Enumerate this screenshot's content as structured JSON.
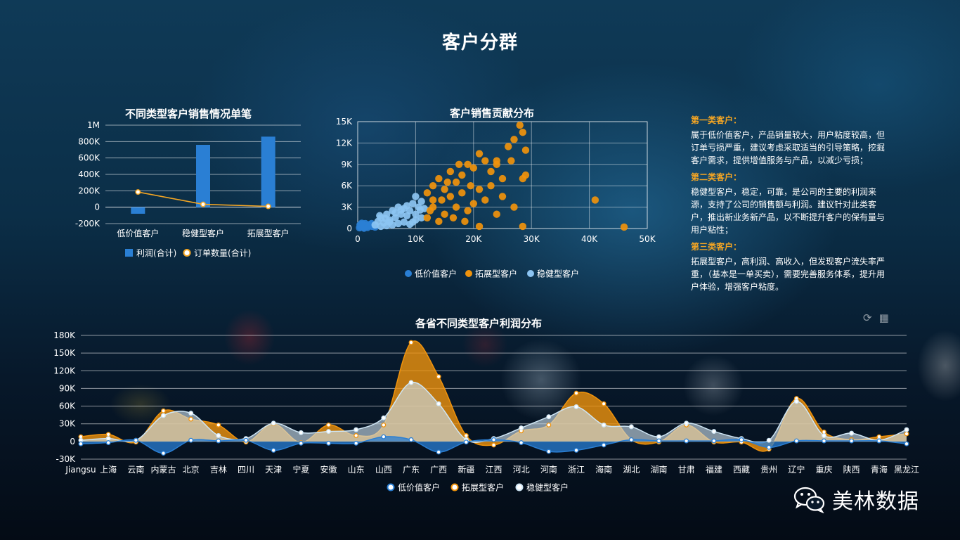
{
  "page": {
    "title": "客户分群"
  },
  "chart_data": [
    {
      "id": "bar",
      "type": "bar",
      "title": "不同类型客户销售情况单笔",
      "categories": [
        "低价值客户",
        "稳健型客户",
        "拓展型客户"
      ],
      "series": [
        {
          "name": "利润(合计)",
          "kind": "bar",
          "color": "#2a7fd4",
          "values": [
            -80000,
            760000,
            860000
          ]
        },
        {
          "name": "订单数量(合计)",
          "kind": "line",
          "color": "#f5a623",
          "values": [
            185000,
            35000,
            10000
          ]
        }
      ],
      "yticks": [
        "1M",
        "800K",
        "600K",
        "400K",
        "200K",
        "0",
        "-200K"
      ],
      "ylim": [
        -200000,
        1000000
      ]
    },
    {
      "id": "scatter",
      "type": "scatter",
      "title": "客户销售贡献分布",
      "xticks": [
        "0",
        "10K",
        "20K",
        "30K",
        "40K",
        "50K"
      ],
      "yticks": [
        "15K",
        "12K",
        "9K",
        "6K",
        "3K",
        "0"
      ],
      "xlim": [
        0,
        50000
      ],
      "ylim": [
        0,
        15000
      ],
      "series": [
        {
          "name": "低价值客户",
          "color": "#2a7fd4",
          "points": [
            [
              300,
              100
            ],
            [
              500,
              200
            ],
            [
              800,
              300
            ],
            [
              1000,
              150
            ],
            [
              1200,
              400
            ],
            [
              1500,
              250
            ],
            [
              1800,
              500
            ],
            [
              2000,
              350
            ],
            [
              600,
              600
            ],
            [
              900,
              450
            ],
            [
              1300,
              700
            ],
            [
              2200,
              600
            ],
            [
              2500,
              300
            ],
            [
              400,
              500
            ],
            [
              1700,
              150
            ],
            [
              2400,
              700
            ],
            [
              1100,
              50
            ],
            [
              2800,
              400
            ],
            [
              700,
              750
            ],
            [
              3000,
              200
            ]
          ]
        },
        {
          "name": "拓展型客户",
          "color": "#f0930c",
          "points": [
            [
              12000,
              5000
            ],
            [
              13000,
              6000
            ],
            [
              14000,
              7000
            ],
            [
              15000,
              5500
            ],
            [
              16000,
              8000
            ],
            [
              17000,
              6500
            ],
            [
              18000,
              7500
            ],
            [
              19000,
              9000
            ],
            [
              20000,
              8500
            ],
            [
              21000,
              10500
            ],
            [
              22000,
              9500
            ],
            [
              23000,
              8000
            ],
            [
              24000,
              9000
            ],
            [
              25000,
              7000
            ],
            [
              26000,
              11500
            ],
            [
              27000,
              12500
            ],
            [
              28000,
              14500
            ],
            [
              28500,
              13500
            ],
            [
              29000,
              11000
            ],
            [
              29000,
              7500
            ],
            [
              28500,
              7000
            ],
            [
              27000,
              3000
            ],
            [
              24000,
              2000
            ],
            [
              22000,
              4000
            ],
            [
              20000,
              3500
            ],
            [
              19000,
              2500
            ],
            [
              17000,
              3000
            ],
            [
              15000,
              2000
            ],
            [
              14000,
              1000
            ],
            [
              13000,
              3000
            ],
            [
              12500,
              2500
            ],
            [
              16000,
              4500
            ],
            [
              18000,
              5000
            ],
            [
              21000,
              5500
            ],
            [
              41000,
              4000
            ],
            [
              46000,
              200
            ],
            [
              28500,
              300
            ],
            [
              21000,
              300
            ],
            [
              13000,
              4000
            ],
            [
              15500,
              6500
            ],
            [
              17500,
              9000
            ],
            [
              19500,
              6000
            ],
            [
              23000,
              6000
            ],
            [
              25000,
              4500
            ],
            [
              26500,
              9500
            ],
            [
              14500,
              4000
            ],
            [
              16500,
              1500
            ],
            [
              18500,
              1000
            ],
            [
              12000,
              1500
            ],
            [
              24000,
              9500
            ]
          ]
        },
        {
          "name": "稳健型客户",
          "color": "#8cc4f2",
          "points": [
            [
              3000,
              500
            ],
            [
              3500,
              1000
            ],
            [
              4000,
              1500
            ],
            [
              4500,
              800
            ],
            [
              5000,
              2000
            ],
            [
              5500,
              1200
            ],
            [
              6000,
              2500
            ],
            [
              6500,
              1500
            ],
            [
              7000,
              3000
            ],
            [
              7500,
              2000
            ],
            [
              8000,
              2800
            ],
            [
              8500,
              3200
            ],
            [
              9000,
              2500
            ],
            [
              9500,
              3500
            ],
            [
              10000,
              4500
            ],
            [
              10500,
              3000
            ],
            [
              11000,
              3800
            ],
            [
              6000,
              500
            ],
            [
              7000,
              700
            ],
            [
              8000,
              900
            ],
            [
              9000,
              600
            ],
            [
              10000,
              1200
            ],
            [
              4000,
              300
            ],
            [
              5000,
              400
            ],
            [
              11000,
              1500
            ],
            [
              10000,
              2000
            ],
            [
              8500,
              1800
            ],
            [
              7500,
              2600
            ],
            [
              6500,
              2200
            ],
            [
              5500,
              900
            ],
            [
              3800,
              1800
            ],
            [
              9500,
              900
            ],
            [
              4800,
              1400
            ],
            [
              10800,
              2600
            ],
            [
              11500,
              2800
            ]
          ]
        }
      ]
    },
    {
      "id": "area",
      "type": "area",
      "title": "各省不同类型客户利润分布",
      "categories": [
        "Jiangsu",
        "上海",
        "云南",
        "内蒙古",
        "北京",
        "吉林",
        "四川",
        "天津",
        "宁夏",
        "安徽",
        "山东",
        "山西",
        "广东",
        "广西",
        "新疆",
        "江西",
        "河北",
        "河南",
        "浙江",
        "海南",
        "湖北",
        "湖南",
        "甘肃",
        "福建",
        "西藏",
        "贵州",
        "辽宁",
        "重庆",
        "陕西",
        "青海",
        "黑龙江"
      ],
      "yticks": [
        "180K",
        "150K",
        "120K",
        "90K",
        "60K",
        "30K",
        "0",
        "-30K"
      ],
      "ylim": [
        -30000,
        180000
      ],
      "series": [
        {
          "name": "低价值客户",
          "color": "#2a7fd4",
          "values": [
            -4000,
            -2000,
            2000,
            -20000,
            2000,
            1000,
            2000,
            -15000,
            -3000,
            -3000,
            -3000,
            8000,
            3000,
            -18000,
            -1000,
            3000,
            -2000,
            -17000,
            -15000,
            -6000,
            3000,
            1000,
            1000,
            1000,
            3000,
            -10000,
            1000,
            1000,
            1000,
            1000,
            -4000
          ]
        },
        {
          "name": "拓展型客户",
          "color": "#f0930c",
          "values": [
            8000,
            12000,
            -1000,
            52000,
            38000,
            28000,
            -1000,
            30000,
            -2000,
            28000,
            10000,
            28000,
            168000,
            110000,
            10000,
            -6000,
            18000,
            28000,
            82000,
            64000,
            3000,
            -1000,
            28000,
            -1000,
            -1000,
            -13000,
            73000,
            16000,
            3000,
            8000,
            13000
          ]
        },
        {
          "name": "稳健型客户",
          "color": "#cfe6f5",
          "values": [
            2000,
            5000,
            2000,
            44000,
            48000,
            10000,
            5000,
            31000,
            15000,
            17000,
            20000,
            40000,
            100000,
            64000,
            3000,
            5000,
            23000,
            42000,
            59000,
            28000,
            25000,
            8000,
            31000,
            17000,
            5000,
            2000,
            68000,
            10000,
            14000,
            2000,
            20000
          ]
        }
      ]
    }
  ],
  "notes": {
    "items": [
      {
        "heading": "第一类客户：",
        "text": "属于低价值客户，产品销量较大，用户粘度较高，但订单亏损严重，建议考虑采取适当的引导策略，挖掘客户需求，提供增值服务与产品，以减少亏损；"
      },
      {
        "heading": "第二类客户：",
        "text": "稳健型客户，稳定，可靠，是公司的主要的利润来源，支持了公司的销售额与利润。建议针对此类客户，推出新业务新产品，以不断提升客户的保有量与用户粘性；"
      },
      {
        "heading": "第三类客户：",
        "text": "拓展型客户，高利润、高收入，但发现客户流失率严重，（基本是一单买卖），需要完善服务体系，提升用户体验，增强客户粘度。"
      }
    ]
  },
  "toolbar": {
    "refresh_icon": "refresh-icon",
    "table_icon": "data-table-icon"
  },
  "brand": {
    "name": "美林数据",
    "icon": "wechat-icon"
  }
}
